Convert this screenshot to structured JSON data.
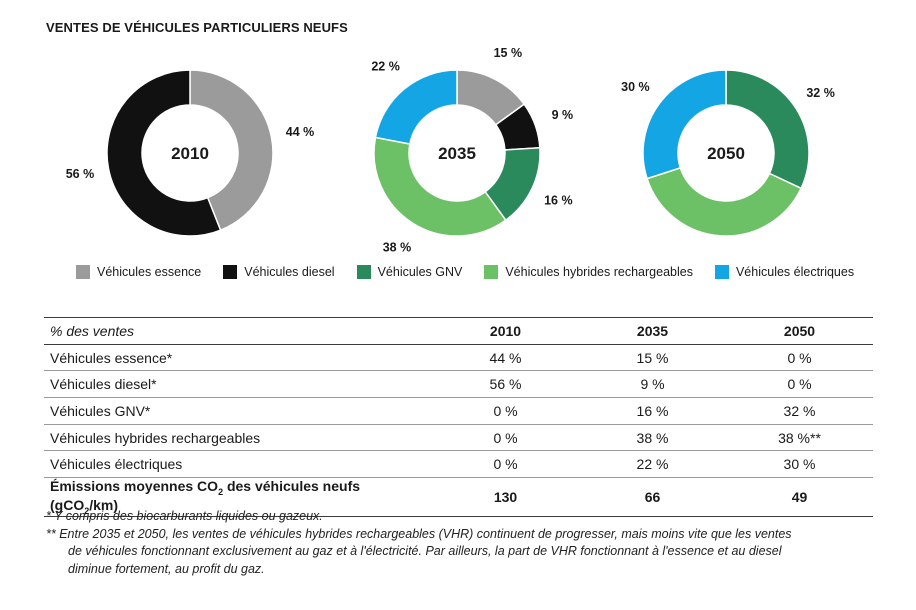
{
  "title": "VENTES DE VÉHICULES PARTICULIERS NEUFS",
  "colors": {
    "essence": "#9b9b9b",
    "diesel": "#111111",
    "gnv": "#2a8a5c",
    "hybrides": "#6cc066",
    "electriques": "#14a6e4"
  },
  "chart_data": [
    {
      "type": "pie",
      "donut": true,
      "center_label": "2010",
      "slices": [
        {
          "series": "essence",
          "value": 44,
          "label": "44 %"
        },
        {
          "series": "diesel",
          "value": 56,
          "label": "56 %"
        }
      ]
    },
    {
      "type": "pie",
      "donut": true,
      "center_label": "2035",
      "slices": [
        {
          "series": "essence",
          "value": 15,
          "label": "15 %"
        },
        {
          "series": "diesel",
          "value": 9,
          "label": "9 %"
        },
        {
          "series": "gnv",
          "value": 16,
          "label": "16 %"
        },
        {
          "series": "hybrides",
          "value": 38,
          "label": "38 %"
        },
        {
          "series": "electriques",
          "value": 22,
          "label": "22 %"
        }
      ]
    },
    {
      "type": "pie",
      "donut": true,
      "center_label": "2050",
      "slices": [
        {
          "series": "gnv",
          "value": 32,
          "label": "32 %"
        },
        {
          "series": "hybrides",
          "value": 38,
          "label": "38 %"
        },
        {
          "series": "electriques",
          "value": 30,
          "label": "30 %"
        }
      ]
    }
  ],
  "legend": [
    {
      "series": "essence",
      "label": "Véhicules essence"
    },
    {
      "series": "diesel",
      "label": "Véhicules diesel"
    },
    {
      "series": "gnv",
      "label": "Véhicules GNV"
    },
    {
      "series": "hybrides",
      "label": "Véhicules hybrides rechargeables"
    },
    {
      "series": "electriques",
      "label": "Véhicules électriques"
    }
  ],
  "table": {
    "header": [
      "% des ventes",
      "2010",
      "2035",
      "2050"
    ],
    "rows": [
      [
        "Véhicules essence*",
        "44 %",
        "15 %",
        "0 %"
      ],
      [
        "Véhicules diesel*",
        "56 %",
        "9 %",
        "0 %"
      ],
      [
        "Véhicules GNV*",
        "0 %",
        "16 %",
        "32 %"
      ],
      [
        "Véhicules hybrides rechargeables",
        "0 %",
        "38 %",
        "38 %**"
      ],
      [
        "Véhicules électriques",
        "0 %",
        "22 %",
        "30 %"
      ]
    ],
    "emissions": {
      "label_prefix": "Émissions moyennes CO",
      "label_sub": "2",
      "label_middle": " des véhicules neufs (gCO",
      "label_sub2": "2",
      "label_suffix": "/km)",
      "values": [
        "130",
        "66",
        "49"
      ]
    }
  },
  "notes": {
    "note1": "* Y compris des biocarburants liquides ou gazeux.",
    "note2_line1": "** Entre 2035 et 2050, les ventes de véhicules hybrides rechargeables (VHR) continuent de progresser, mais moins vite que les ventes",
    "note2_line2": "de véhicules fonctionnant exclusivement au gaz et à l'électricité. Par ailleurs, la part de VHR fonctionnant à l'essence et au diesel",
    "note2_line3": "diminue fortement, au profit du gaz."
  }
}
